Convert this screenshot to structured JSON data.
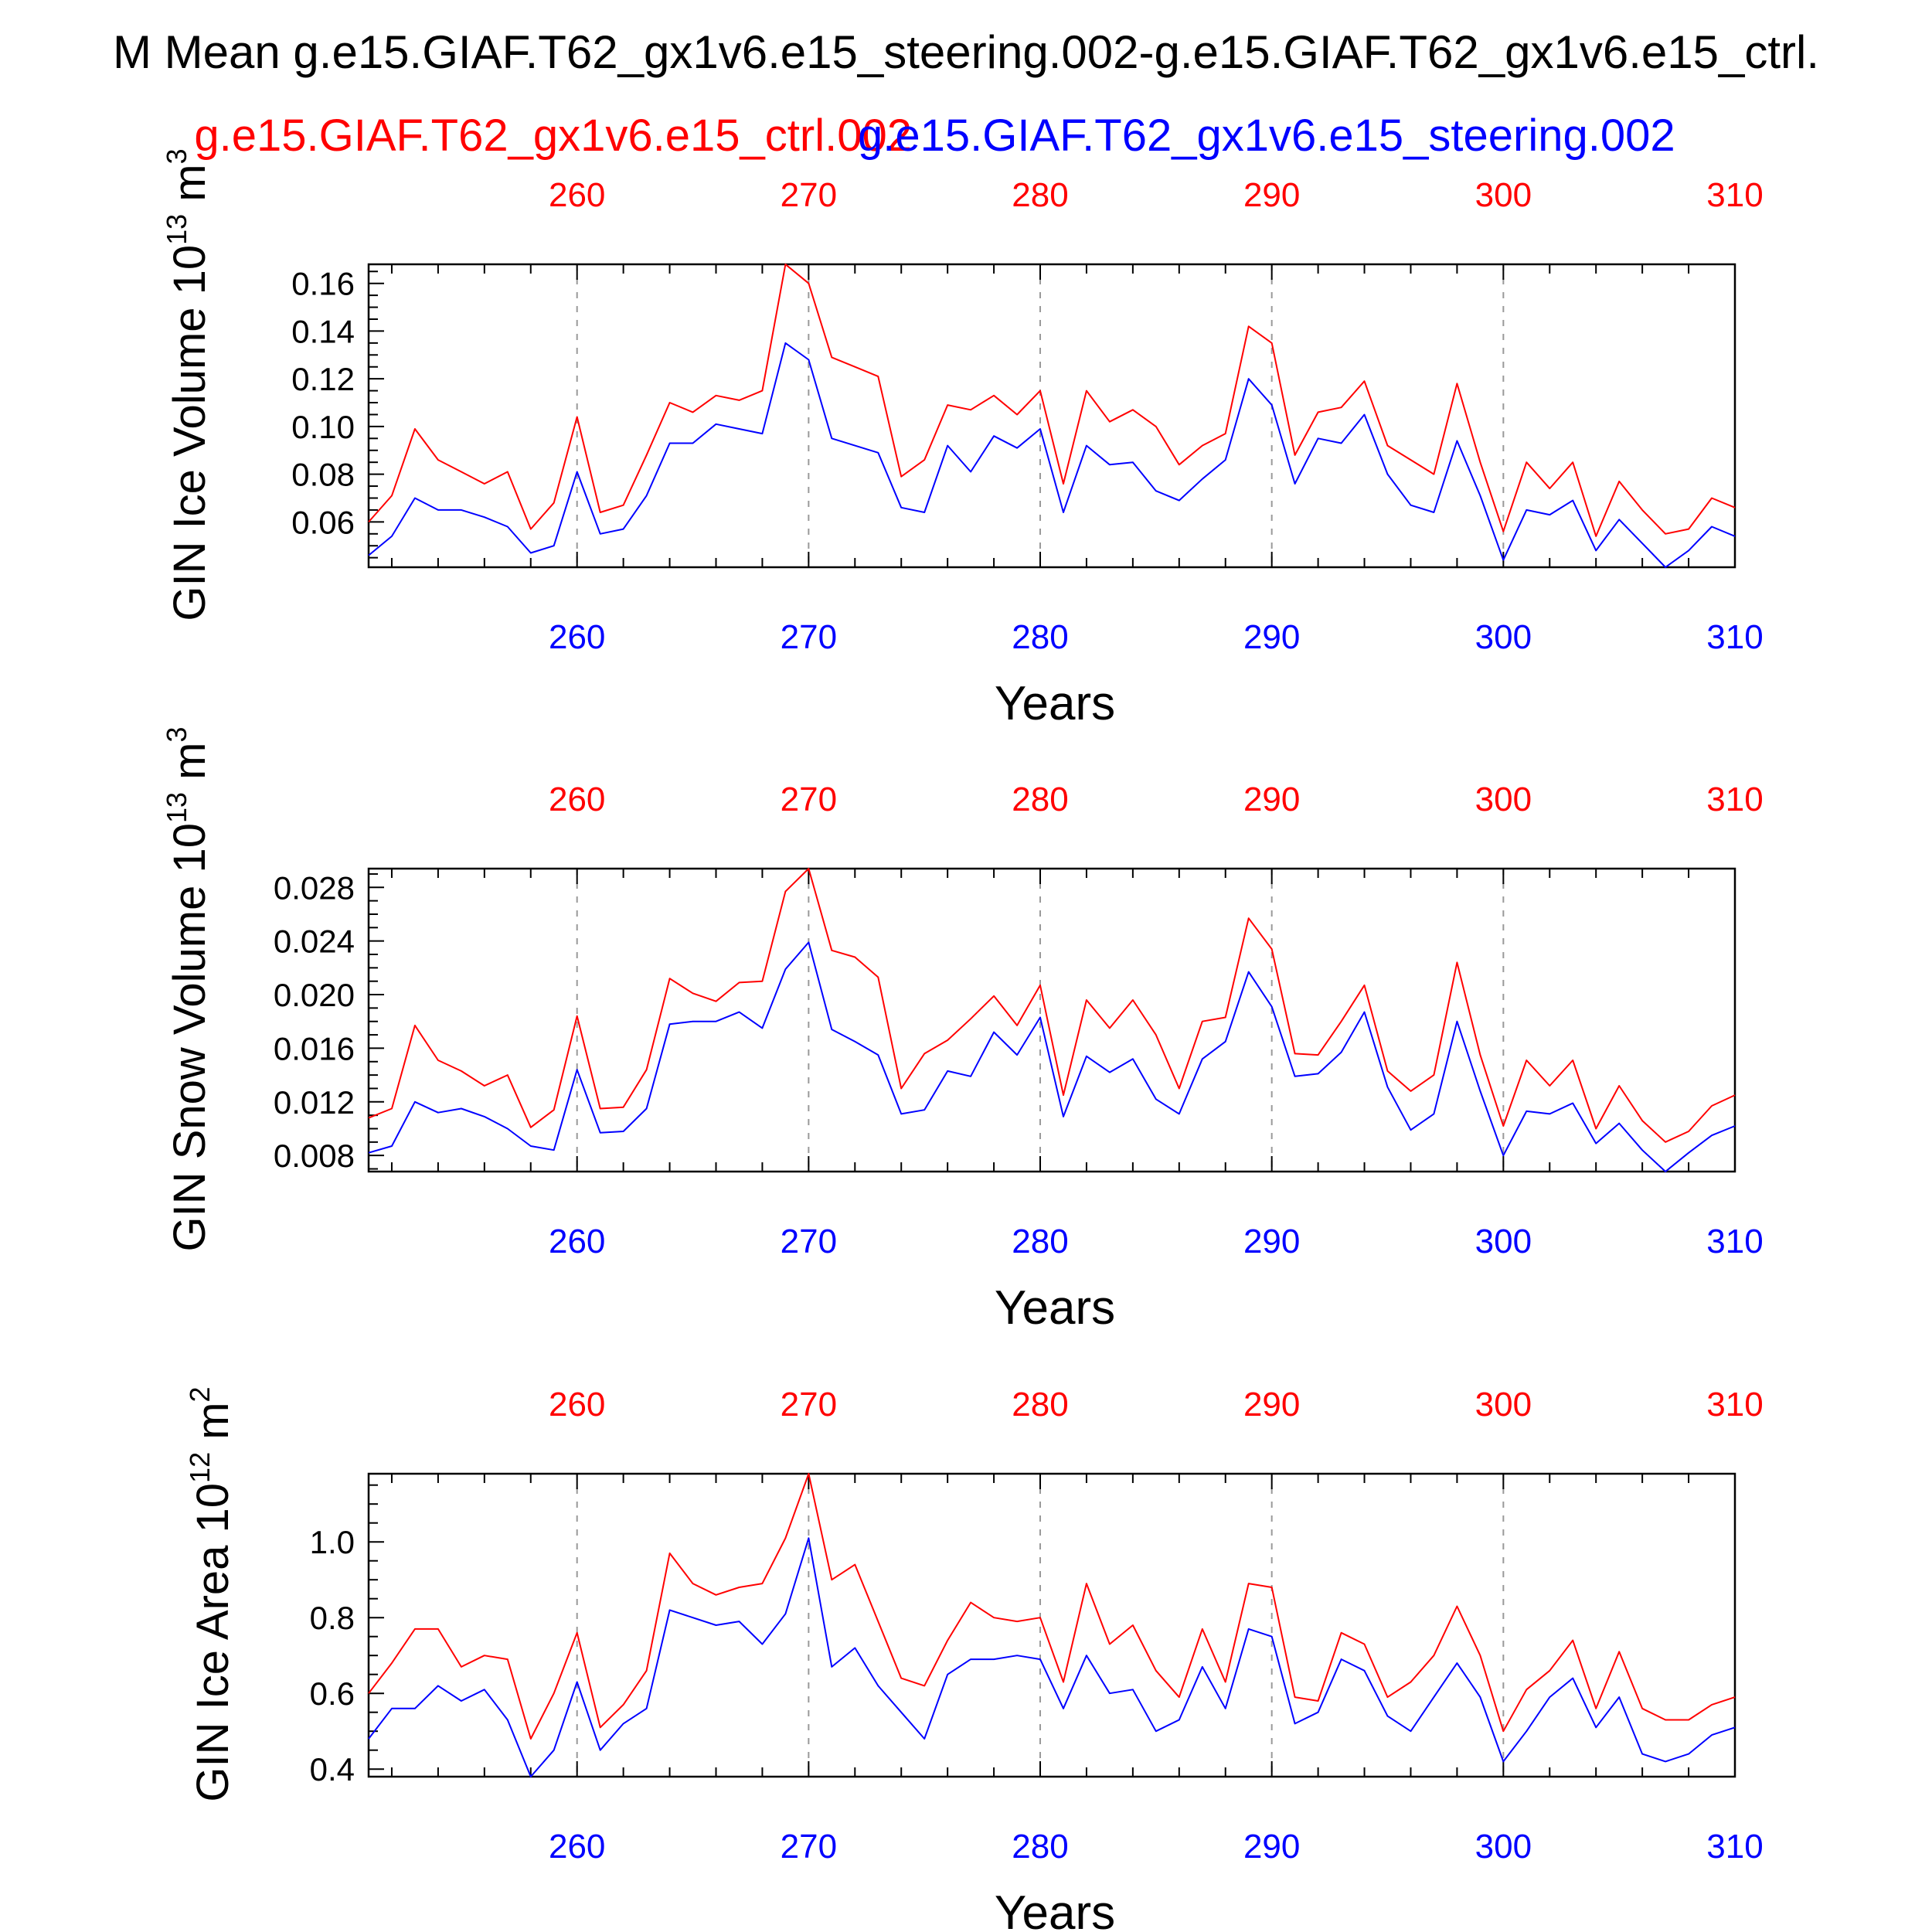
{
  "title": "M Mean g.e15.GIAF.T62_gx1v6.e15_steering.002-g.e15.GIAF.T62_gx1v6.e15_ctrl.",
  "legend": {
    "ctrl_label": "g.e15.GIAF.T62_gx1v6.e15_ctrl.002",
    "steer_label": "g.e15.GIAF.T62_gx1v6.e15_steering.002"
  },
  "colors": {
    "ctrl": "#ff0000",
    "steer": "#0000ff",
    "axis": "#000000",
    "grid": "#999999"
  },
  "chart_data": [
    {
      "type": "line",
      "ylabel_main": "GIN Ice Volume 10",
      "ylabel_exp": "13",
      "ylabel_unit": " m",
      "ylabel_unit_exp": "3",
      "xlabel": "Years",
      "xlim": [
        251,
        310
      ],
      "ylim": [
        0.041,
        0.168
      ],
      "xticks": [
        "260",
        "270",
        "280",
        "290",
        "300",
        "310"
      ],
      "yticks": [
        "0.06",
        "0.08",
        "0.10",
        "0.12",
        "0.14",
        "0.16"
      ],
      "grid": "vertical dashed at major x ticks",
      "x": [
        251,
        252,
        253,
        254,
        255,
        256,
        257,
        258,
        259,
        260,
        261,
        262,
        263,
        264,
        265,
        266,
        267,
        268,
        269,
        270,
        271,
        272,
        273,
        274,
        275,
        276,
        277,
        278,
        279,
        280,
        281,
        282,
        283,
        284,
        285,
        286,
        287,
        288,
        289,
        290,
        291,
        292,
        293,
        294,
        295,
        296,
        297,
        298,
        299,
        300,
        301,
        302,
        303,
        304,
        305,
        306,
        307,
        308,
        309,
        310
      ],
      "series": [
        {
          "name": "g.e15.GIAF.T62_gx1v6.e15_ctrl.002",
          "values": [
            0.06,
            0.071,
            0.099,
            0.086,
            0.081,
            0.076,
            0.081,
            0.057,
            0.068,
            0.104,
            0.064,
            0.067,
            0.088,
            0.11,
            0.106,
            0.113,
            0.111,
            0.115,
            0.168,
            0.16,
            0.129,
            0.125,
            0.121,
            0.079,
            0.086,
            0.109,
            0.107,
            0.113,
            0.105,
            0.115,
            0.076,
            0.115,
            0.102,
            0.107,
            0.1,
            0.084,
            0.092,
            0.097,
            0.142,
            0.135,
            0.088,
            0.106,
            0.108,
            0.119,
            0.092,
            0.086,
            0.08,
            0.118,
            0.085,
            0.056,
            0.085,
            0.074,
            0.085,
            0.054,
            0.077,
            0.065,
            0.055,
            0.057,
            0.07,
            0.066
          ]
        },
        {
          "name": "g.e15.GIAF.T62_gx1v6.e15_steering.002",
          "values": [
            0.046,
            0.054,
            0.07,
            0.065,
            0.065,
            0.062,
            0.058,
            0.047,
            0.05,
            0.081,
            0.055,
            0.057,
            0.071,
            0.093,
            0.093,
            0.101,
            0.099,
            0.097,
            0.135,
            0.128,
            0.095,
            0.092,
            0.089,
            0.066,
            0.064,
            0.092,
            0.081,
            0.096,
            0.091,
            0.099,
            0.064,
            0.092,
            0.084,
            0.085,
            0.073,
            0.069,
            0.078,
            0.086,
            0.12,
            0.109,
            0.076,
            0.095,
            0.093,
            0.105,
            0.08,
            0.067,
            0.064,
            0.094,
            0.071,
            0.044,
            0.065,
            0.063,
            0.069,
            0.048,
            0.061,
            0.051,
            0.041,
            0.048,
            0.058,
            0.054
          ]
        }
      ]
    },
    {
      "type": "line",
      "ylabel_main": "GIN Snow Volume 10",
      "ylabel_exp": "13",
      "ylabel_unit": " m",
      "ylabel_unit_exp": "3",
      "xlabel": "Years",
      "xlim": [
        251,
        310
      ],
      "ylim": [
        0.0068,
        0.0294
      ],
      "xticks": [
        "260",
        "270",
        "280",
        "290",
        "300",
        "310"
      ],
      "yticks": [
        "0.008",
        "0.012",
        "0.016",
        "0.020",
        "0.024",
        "0.028"
      ],
      "grid": "vertical dashed at major x ticks",
      "x": [
        251,
        252,
        253,
        254,
        255,
        256,
        257,
        258,
        259,
        260,
        261,
        262,
        263,
        264,
        265,
        266,
        267,
        268,
        269,
        270,
        271,
        272,
        273,
        274,
        275,
        276,
        277,
        278,
        279,
        280,
        281,
        282,
        283,
        284,
        285,
        286,
        287,
        288,
        289,
        290,
        291,
        292,
        293,
        294,
        295,
        296,
        297,
        298,
        299,
        300,
        301,
        302,
        303,
        304,
        305,
        306,
        307,
        308,
        309,
        310
      ],
      "series": [
        {
          "name": "g.e15.GIAF.T62_gx1v6.e15_ctrl.002",
          "values": [
            0.0108,
            0.0115,
            0.0177,
            0.0151,
            0.0143,
            0.0132,
            0.014,
            0.0101,
            0.0114,
            0.0184,
            0.0115,
            0.0116,
            0.0144,
            0.0212,
            0.0201,
            0.0195,
            0.0209,
            0.021,
            0.0277,
            0.0294,
            0.0233,
            0.0228,
            0.0213,
            0.013,
            0.0156,
            0.0166,
            0.0182,
            0.0199,
            0.0177,
            0.0207,
            0.0125,
            0.0196,
            0.0175,
            0.0196,
            0.017,
            0.013,
            0.018,
            0.0183,
            0.0257,
            0.0234,
            0.0156,
            0.0155,
            0.018,
            0.0207,
            0.0143,
            0.0128,
            0.014,
            0.0224,
            0.0155,
            0.0102,
            0.0151,
            0.0132,
            0.0151,
            0.01,
            0.0132,
            0.0106,
            0.009,
            0.0098,
            0.0117,
            0.0125
          ]
        },
        {
          "name": "g.e15.GIAF.T62_gx1v6.e15_steering.002",
          "values": [
            0.0082,
            0.0087,
            0.012,
            0.0112,
            0.0115,
            0.0109,
            0.01,
            0.0087,
            0.0084,
            0.0144,
            0.0097,
            0.0098,
            0.0115,
            0.0178,
            0.018,
            0.018,
            0.0187,
            0.0175,
            0.0219,
            0.0239,
            0.0174,
            0.0165,
            0.0155,
            0.0111,
            0.0114,
            0.0143,
            0.0139,
            0.0172,
            0.0155,
            0.0183,
            0.0109,
            0.0154,
            0.0142,
            0.0152,
            0.0122,
            0.0111,
            0.0152,
            0.0165,
            0.0217,
            0.0191,
            0.0139,
            0.0141,
            0.0157,
            0.0187,
            0.0131,
            0.0099,
            0.0111,
            0.018,
            0.0128,
            0.008,
            0.0113,
            0.0111,
            0.0119,
            0.0089,
            0.0104,
            0.0084,
            0.0068,
            0.0082,
            0.0095,
            0.0102
          ]
        }
      ]
    },
    {
      "type": "line",
      "ylabel_main": "GIN Ice Area 10",
      "ylabel_exp": "12",
      "ylabel_unit": " m",
      "ylabel_unit_exp": "2",
      "xlabel": "Years",
      "xlim": [
        251,
        310
      ],
      "ylim": [
        0.38,
        1.18
      ],
      "xticks": [
        "260",
        "270",
        "280",
        "290",
        "300",
        "310"
      ],
      "yticks": [
        "0.4",
        "0.6",
        "0.8",
        "1.0"
      ],
      "grid": "vertical dashed at major x ticks",
      "x": [
        251,
        252,
        253,
        254,
        255,
        256,
        257,
        258,
        259,
        260,
        261,
        262,
        263,
        264,
        265,
        266,
        267,
        268,
        269,
        270,
        271,
        272,
        273,
        274,
        275,
        276,
        277,
        278,
        279,
        280,
        281,
        282,
        283,
        284,
        285,
        286,
        287,
        288,
        289,
        290,
        291,
        292,
        293,
        294,
        295,
        296,
        297,
        298,
        299,
        300,
        301,
        302,
        303,
        304,
        305,
        306,
        307,
        308,
        309,
        310
      ],
      "series": [
        {
          "name": "g.e15.GIAF.T62_gx1v6.e15_ctrl.002",
          "values": [
            0.6,
            0.68,
            0.77,
            0.77,
            0.67,
            0.7,
            0.69,
            0.48,
            0.6,
            0.76,
            0.51,
            0.57,
            0.66,
            0.97,
            0.89,
            0.86,
            0.88,
            0.89,
            1.01,
            1.18,
            0.9,
            0.94,
            0.79,
            0.64,
            0.62,
            0.74,
            0.84,
            0.8,
            0.79,
            0.8,
            0.63,
            0.89,
            0.73,
            0.78,
            0.66,
            0.59,
            0.77,
            0.63,
            0.89,
            0.88,
            0.59,
            0.58,
            0.76,
            0.73,
            0.59,
            0.63,
            0.7,
            0.83,
            0.7,
            0.5,
            0.61,
            0.66,
            0.74,
            0.56,
            0.71,
            0.56,
            0.53,
            0.53,
            0.57,
            0.59
          ]
        },
        {
          "name": "g.e15.GIAF.T62_gx1v6.e15_steering.002",
          "values": [
            0.48,
            0.56,
            0.56,
            0.62,
            0.58,
            0.61,
            0.53,
            0.38,
            0.45,
            0.63,
            0.45,
            0.52,
            0.56,
            0.82,
            0.8,
            0.78,
            0.79,
            0.73,
            0.81,
            1.01,
            0.67,
            0.72,
            0.62,
            0.55,
            0.48,
            0.65,
            0.69,
            0.69,
            0.7,
            0.69,
            0.56,
            0.7,
            0.6,
            0.61,
            0.5,
            0.53,
            0.67,
            0.56,
            0.77,
            0.75,
            0.52,
            0.55,
            0.69,
            0.66,
            0.54,
            0.5,
            0.59,
            0.68,
            0.59,
            0.42,
            0.5,
            0.59,
            0.64,
            0.51,
            0.59,
            0.44,
            0.42,
            0.44,
            0.49,
            0.51
          ]
        }
      ]
    }
  ]
}
